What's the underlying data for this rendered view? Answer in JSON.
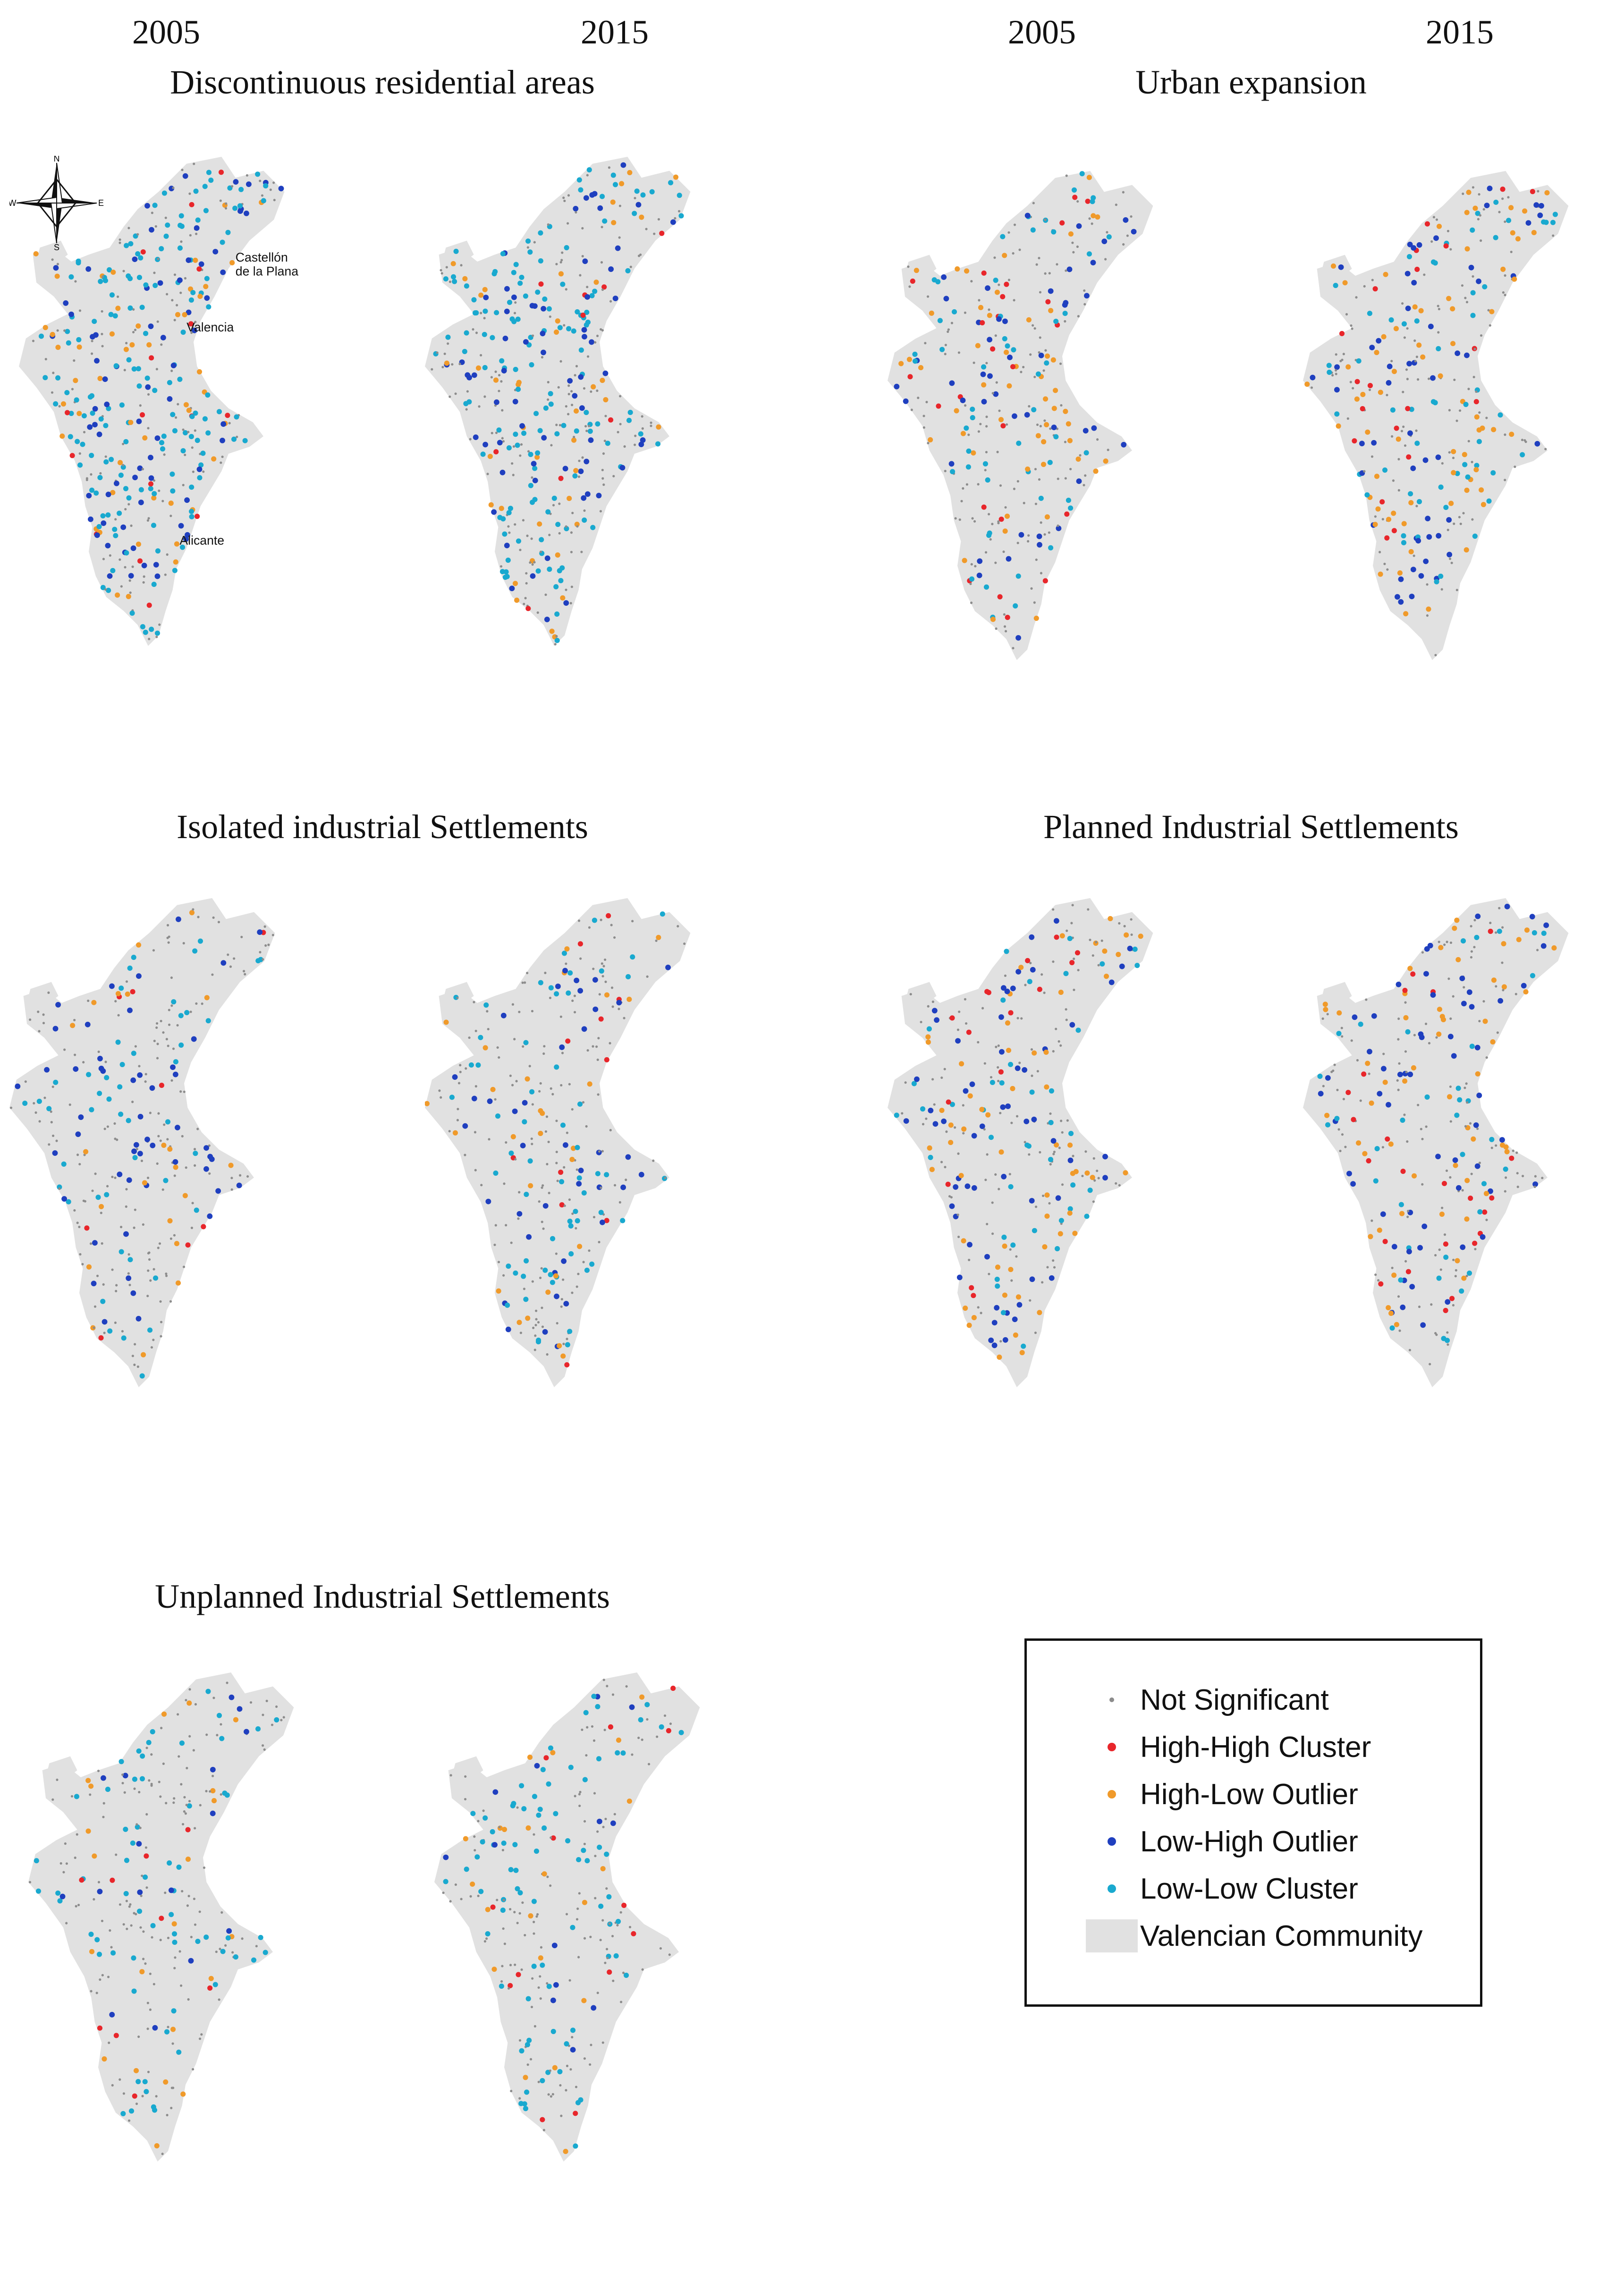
{
  "years": {
    "left": "2005",
    "right": "2015"
  },
  "panels": [
    {
      "id": "discontinuous-residential",
      "title": "Discontinuous residential areas",
      "showYears": true
    },
    {
      "id": "urban-expansion",
      "title": "Urban expansion",
      "showYears": true
    },
    {
      "id": "isolated-industrial",
      "title": "Isolated industrial Settlements",
      "showYears": false
    },
    {
      "id": "planned-industrial",
      "title": "Planned Industrial Settlements",
      "showYears": false
    },
    {
      "id": "unplanned-industrial",
      "title": "Unplanned Industrial Settlements",
      "showYears": false
    }
  ],
  "cities": [
    "Castellón",
    "de la Plana",
    "Valencia",
    "Alicante"
  ],
  "compass": {
    "labels": [
      "N",
      "S",
      "E",
      "W"
    ]
  },
  "legend": {
    "items": [
      {
        "label": "Not Significant",
        "color": "#8c8c8c",
        "size": "small"
      },
      {
        "label": "High-High Cluster",
        "color": "#e8262b"
      },
      {
        "label": "High-Low Outlier",
        "color": "#f09a2a"
      },
      {
        "label": "Low-High Outlier",
        "color": "#1f3fbf"
      },
      {
        "label": "Low-Low Cluster",
        "color": "#19a9cf"
      },
      {
        "label": "Valencian Community",
        "color": "#e1e1e1",
        "type": "area"
      }
    ]
  },
  "colors": {
    "region": "#e1e1e1",
    "not_significant": "#8c8c8c",
    "high_high": "#e8262b",
    "high_low": "#f09a2a",
    "low_high": "#1f3fbf",
    "low_low": "#19a9cf"
  }
}
